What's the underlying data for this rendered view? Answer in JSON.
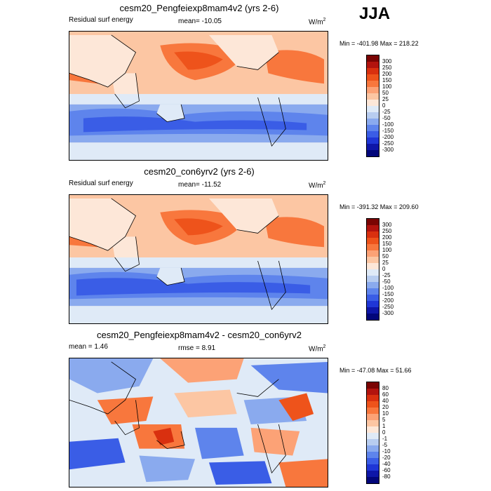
{
  "season": "JJA",
  "panels": [
    {
      "title": "cesm20_Pengfeiexp8mam4v2 (yrs 2-6)",
      "subtitle_left": "Residual surf energy",
      "subtitle_mid": "mean= -10.05",
      "units": "W/m",
      "units_exp": "2",
      "minmax": "Min = -401.98 Max = 218.22",
      "colorbar_labels": [
        "300",
        "250",
        "200",
        "150",
        "100",
        "50",
        "25",
        "0",
        "-25",
        "-50",
        "-100",
        "-150",
        "-200",
        "-250",
        "-300"
      ],
      "colorbar_colors": [
        "#7a0403",
        "#b2130e",
        "#d9300f",
        "#ee531b",
        "#f8773d",
        "#fca276",
        "#fcc6a3",
        "#fde7d8",
        "#dfeaf7",
        "#b8cdf0",
        "#8aaaee",
        "#5e84ec",
        "#3a5de6",
        "#1f36d6",
        "#0e16a8",
        "#02067a"
      ]
    },
    {
      "title": "cesm20_con6yrv2 (yrs 2-6)",
      "subtitle_left": "Residual surf energy",
      "subtitle_mid": "mean= -11.52",
      "units": "W/m",
      "units_exp": "2",
      "minmax": "Min = -391.32 Max = 209.60",
      "colorbar_labels": [
        "300",
        "250",
        "200",
        "150",
        "100",
        "50",
        "25",
        "0",
        "-25",
        "-50",
        "-100",
        "-150",
        "-200",
        "-250",
        "-300"
      ],
      "colorbar_colors": [
        "#7a0403",
        "#b2130e",
        "#d9300f",
        "#ee531b",
        "#f8773d",
        "#fca276",
        "#fcc6a3",
        "#fde7d8",
        "#dfeaf7",
        "#b8cdf0",
        "#8aaaee",
        "#5e84ec",
        "#3a5de6",
        "#1f36d6",
        "#0e16a8",
        "#02067a"
      ]
    },
    {
      "title": "cesm20_Pengfeiexp8mam4v2 - cesm20_con6yrv2",
      "subtitle_left": "mean =   1.46",
      "subtitle_mid": "rmse =   8.91",
      "units": "W/m",
      "units_exp": "2",
      "minmax": "Min = -47.08 Max =  51.66",
      "colorbar_labels": [
        "80",
        "60",
        "40",
        "20",
        "10",
        "5",
        "1",
        "0",
        "-1",
        "-5",
        "-10",
        "-20",
        "-40",
        "-60",
        "-80"
      ],
      "colorbar_colors": [
        "#7a0403",
        "#b2130e",
        "#d9300f",
        "#ee531b",
        "#f8773d",
        "#fca276",
        "#fcc6a3",
        "#fde7d8",
        "#dfeaf7",
        "#b8cdf0",
        "#8aaaee",
        "#5e84ec",
        "#3a5de6",
        "#1f36d6",
        "#0e16a8",
        "#02067a"
      ]
    }
  ]
}
